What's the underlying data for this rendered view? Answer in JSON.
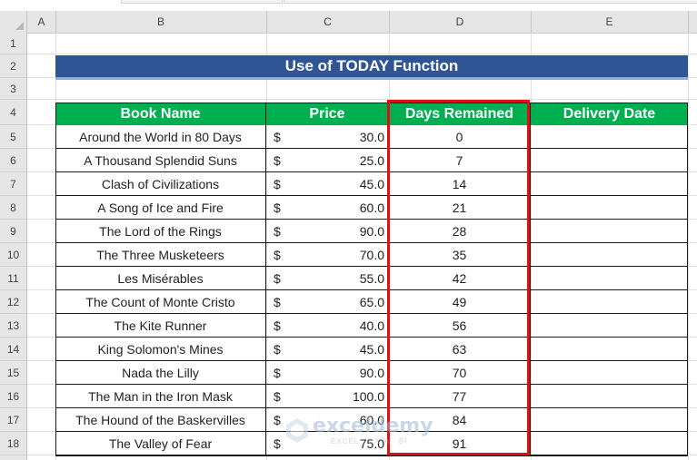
{
  "columns": [
    "A",
    "B",
    "C",
    "D",
    "E"
  ],
  "rows": [
    "1",
    "2",
    "3",
    "4",
    "5",
    "6",
    "7",
    "8",
    "9",
    "10",
    "11",
    "12",
    "13",
    "14",
    "15",
    "16",
    "17",
    "18"
  ],
  "title": "Use of TODAY Function",
  "headers": {
    "book_name": "Book Name",
    "price": "Price",
    "days_remained": "Days Remained",
    "delivery_date": "Delivery Date"
  },
  "currency_symbol": "$",
  "books": [
    {
      "name": "Around the World in 80 Days",
      "price": "30.0",
      "days": "0",
      "delivery": ""
    },
    {
      "name": "A Thousand Splendid Suns",
      "price": "25.0",
      "days": "7",
      "delivery": ""
    },
    {
      "name": "Clash of Civilizations",
      "price": "45.0",
      "days": "14",
      "delivery": ""
    },
    {
      "name": "A Song of Ice and Fire",
      "price": "60.0",
      "days": "21",
      "delivery": ""
    },
    {
      "name": "The Lord of the Rings",
      "price": "90.0",
      "days": "28",
      "delivery": ""
    },
    {
      "name": "The Three Musketeers",
      "price": "70.0",
      "days": "35",
      "delivery": ""
    },
    {
      "name": "Les Misérables",
      "price": "55.0",
      "days": "42",
      "delivery": ""
    },
    {
      "name": "The Count of Monte Cristo",
      "price": "65.0",
      "days": "49",
      "delivery": ""
    },
    {
      "name": "The Kite Runner",
      "price": "40.0",
      "days": "56",
      "delivery": ""
    },
    {
      "name": "King Solomon's Mines",
      "price": "45.0",
      "days": "63",
      "delivery": ""
    },
    {
      "name": "Nada the Lilly",
      "price": "90.0",
      "days": "70",
      "delivery": ""
    },
    {
      "name": "The Man in the Iron Mask",
      "price": "100.0",
      "days": "77",
      "delivery": ""
    },
    {
      "name": "The Hound of the Baskervilles",
      "price": "60.0",
      "days": "84",
      "delivery": ""
    },
    {
      "name": "The Valley of Fear",
      "price": "75.0",
      "days": "91",
      "delivery": ""
    }
  ],
  "watermark": {
    "name": "exceldemy",
    "tagline": "EXCEL · DATA · BI"
  },
  "colors": {
    "title_bg": "#2f5597",
    "header_bg": "#00b050",
    "highlight": "#e01010"
  }
}
